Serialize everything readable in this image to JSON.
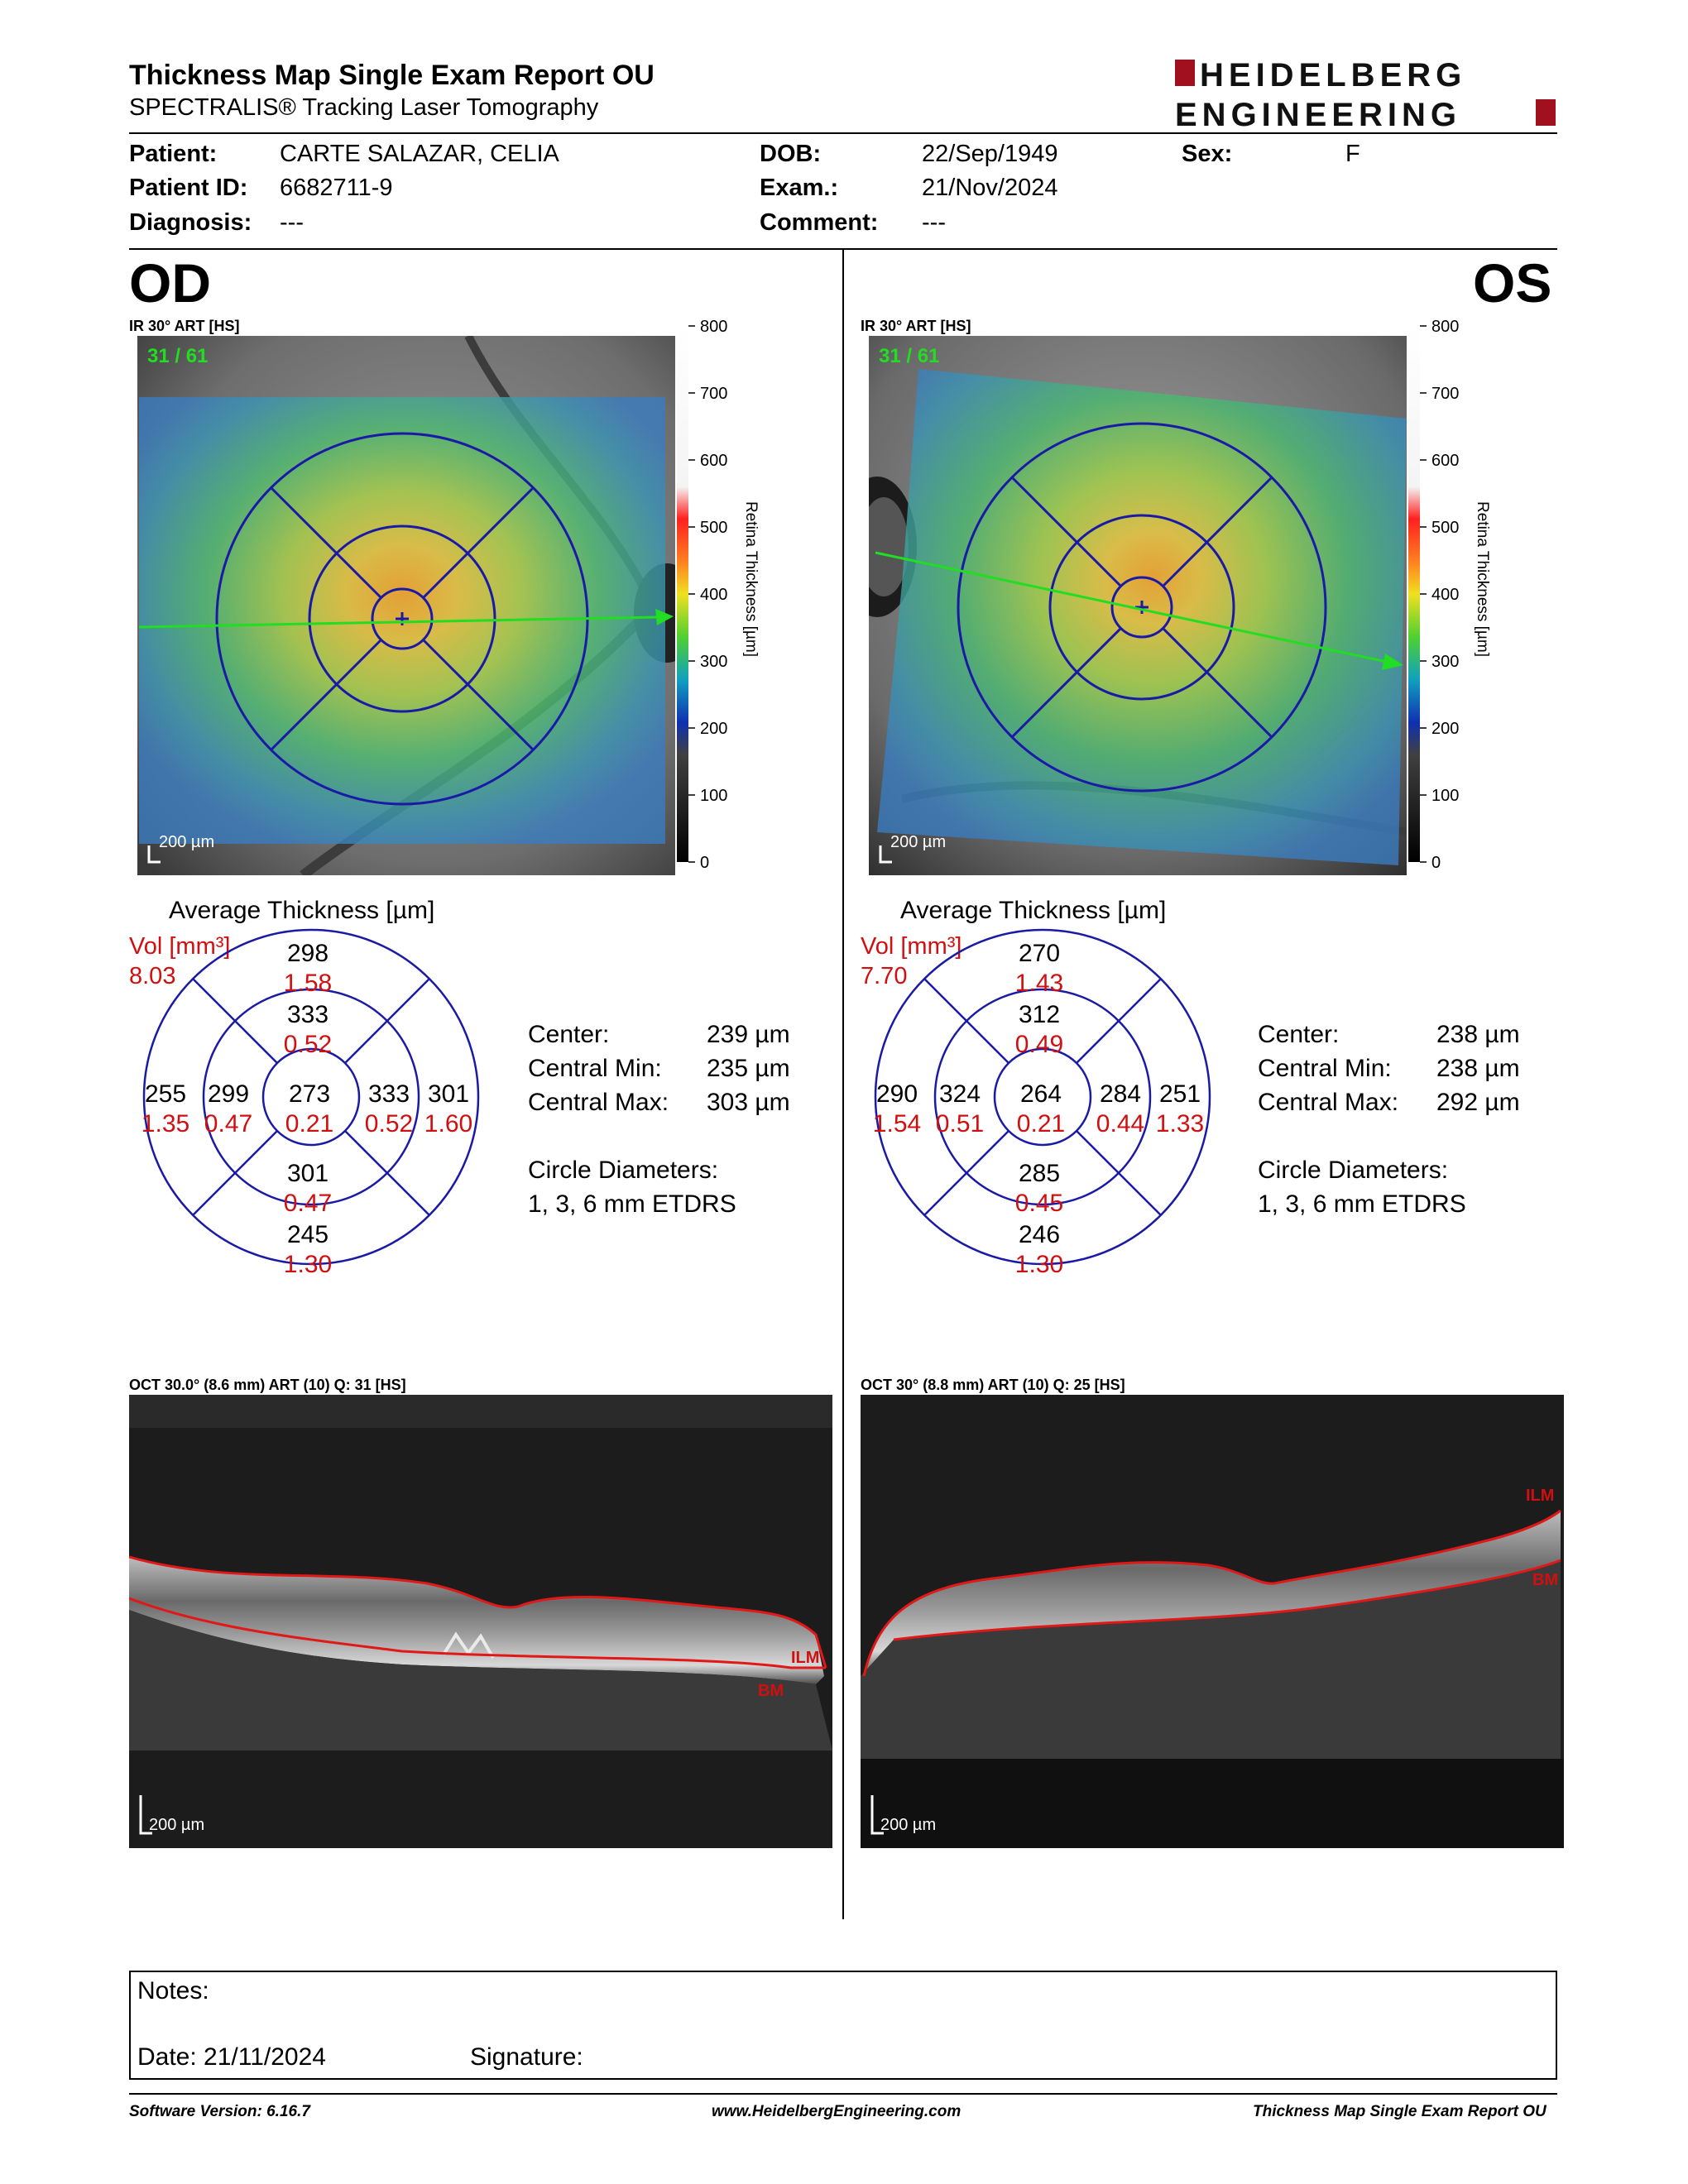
{
  "header": {
    "title": "Thickness Map Single Exam Report OU",
    "subtitle": "SPECTRALIS® Tracking Laser Tomography",
    "logo_line1": "HEIDELBERG",
    "logo_line2": "ENGINEERING"
  },
  "patient": {
    "patient_label": "Patient:",
    "patient_value": "CARTE SALAZAR, CELIA",
    "id_label": "Patient ID:",
    "id_value": "6682711-9",
    "diagnosis_label": "Diagnosis:",
    "diagnosis_value": "---",
    "dob_label": "DOB:",
    "dob_value": "22/Sep/1949",
    "exam_label": "Exam.:",
    "exam_value": "21/Nov/2024",
    "comment_label": "Comment:",
    "comment_value": "---",
    "sex_label": "Sex:",
    "sex_value": "F"
  },
  "colorbar": {
    "ticks": [
      "800",
      "700",
      "600",
      "500",
      "400",
      "300",
      "200",
      "100",
      "0"
    ],
    "label": "Retina Thickness [µm]"
  },
  "od": {
    "eye": "OD",
    "ir_label": "IR 30° ART [HS]",
    "ir_counter": "31 / 61",
    "scale": "200 µm",
    "avg_title": "Average Thickness [µm]",
    "vol_label": "Vol [mm³]",
    "vol_value": "8.03",
    "sectors": {
      "outer_top": [
        "298",
        "1.58"
      ],
      "inner_top": [
        "333",
        "0.52"
      ],
      "outer_left": [
        "255",
        "1.35"
      ],
      "inner_left": [
        "299",
        "0.47"
      ],
      "center": [
        "273",
        "0.21"
      ],
      "inner_right": [
        "333",
        "0.52"
      ],
      "outer_right": [
        "301",
        "1.60"
      ],
      "inner_bottom": [
        "301",
        "0.47"
      ],
      "outer_bottom": [
        "245",
        "1.30"
      ]
    },
    "stats": {
      "center_label": "Center:",
      "center_value": "239 µm",
      "min_label": "Central Min:",
      "min_value": "235 µm",
      "max_label": "Central Max:",
      "max_value": "303 µm",
      "diam_label": "Circle Diameters:",
      "diam_value": "1, 3, 6 mm ETDRS"
    },
    "oct_label": "OCT 30.0° (8.6 mm) ART (10) Q: 31 [HS]",
    "oct_scale": "200 µm",
    "ilm": "ILM",
    "bm": "BM"
  },
  "os": {
    "eye": "OS",
    "ir_label": "IR 30° ART [HS]",
    "ir_counter": "31 / 61",
    "scale": "200 µm",
    "avg_title": "Average Thickness [µm]",
    "vol_label": "Vol [mm³]",
    "vol_value": "7.70",
    "sectors": {
      "outer_top": [
        "270",
        "1.43"
      ],
      "inner_top": [
        "312",
        "0.49"
      ],
      "outer_left": [
        "290",
        "1.54"
      ],
      "inner_left": [
        "324",
        "0.51"
      ],
      "center": [
        "264",
        "0.21"
      ],
      "inner_right": [
        "284",
        "0.44"
      ],
      "outer_right": [
        "251",
        "1.33"
      ],
      "inner_bottom": [
        "285",
        "0.45"
      ],
      "outer_bottom": [
        "246",
        "1.30"
      ]
    },
    "stats": {
      "center_label": "Center:",
      "center_value": "238 µm",
      "min_label": "Central Min:",
      "min_value": "238 µm",
      "max_label": "Central Max:",
      "max_value": "292 µm",
      "diam_label": "Circle Diameters:",
      "diam_value": "1, 3, 6 mm ETDRS"
    },
    "oct_label": "OCT 30° (8.8 mm) ART (10) Q: 25 [HS]",
    "oct_scale": "200 µm",
    "ilm": "ILM",
    "bm": "BM"
  },
  "notes": {
    "notes_label": "Notes:",
    "date_label": "Date: 21/11/2024",
    "signature_label": "Signature:"
  },
  "footer": {
    "software": "Software Version: 6.16.7",
    "website": "www.HeidelbergEngineering.com",
    "report": "Thickness Map Single Exam Report OU"
  },
  "colors": {
    "etdrs_grid": "#1a1aa6",
    "volume_red": "#d01010",
    "scan_line": "#22dd22",
    "brand_red": "#a0101e"
  }
}
